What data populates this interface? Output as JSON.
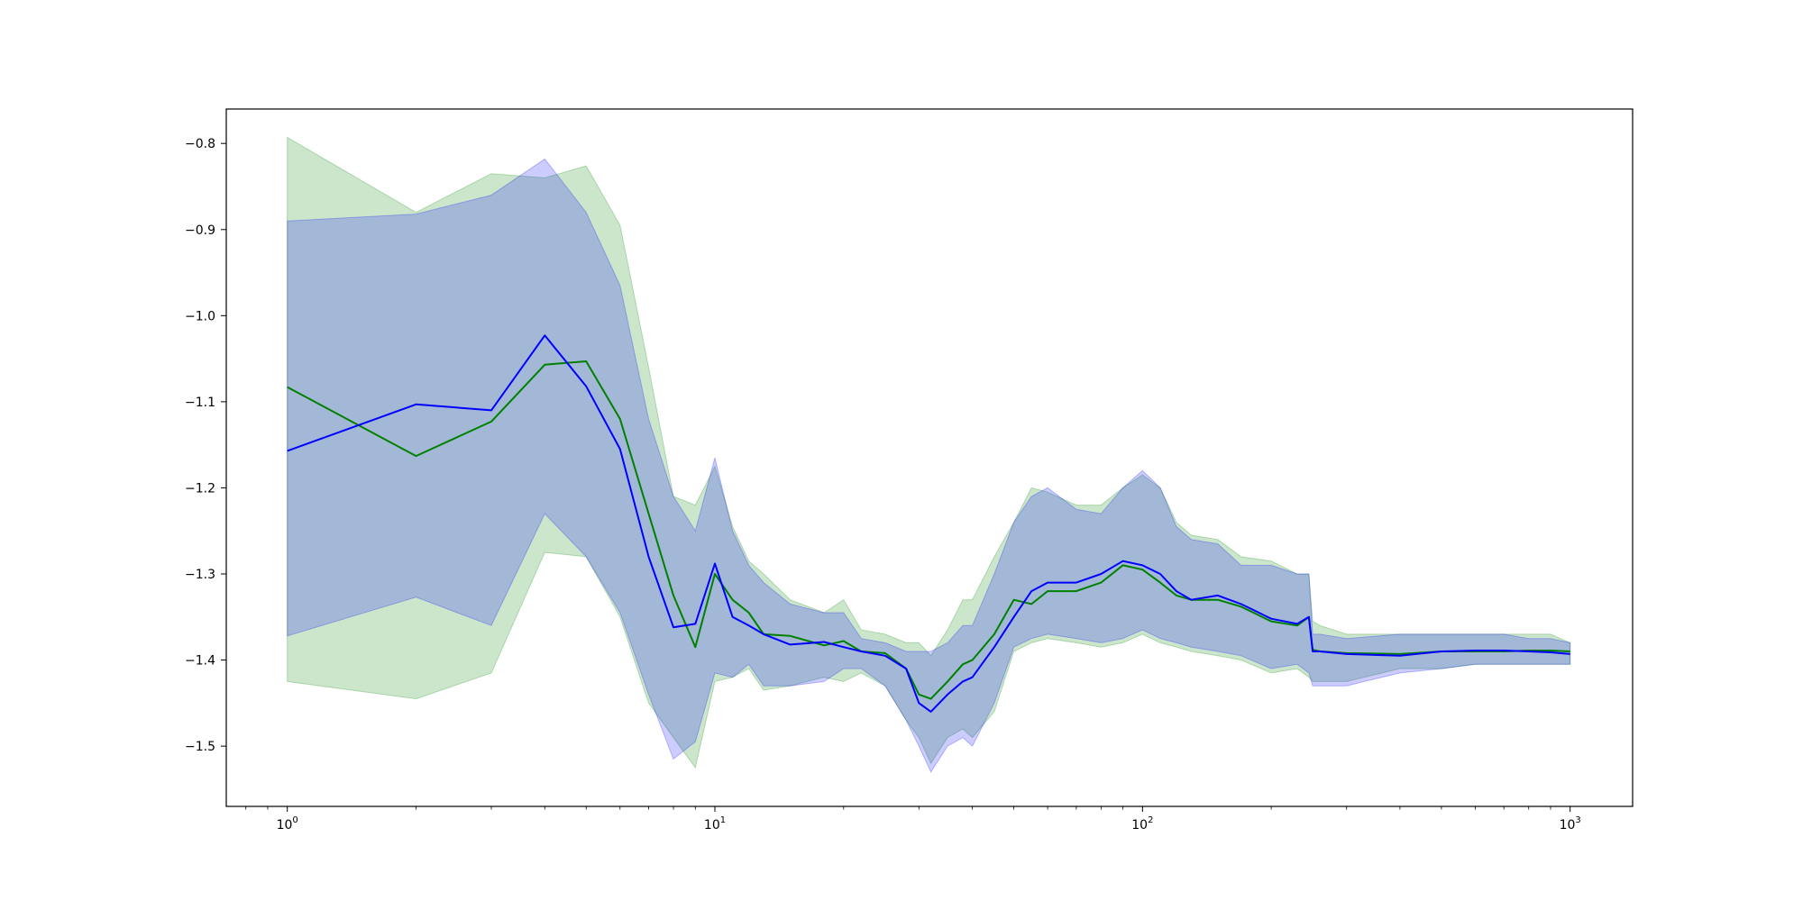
{
  "chart_data": {
    "type": "line",
    "title": "",
    "xlabel": "",
    "ylabel": "",
    "xscale": "log",
    "xlim": [
      0.72,
      1400
    ],
    "ylim": [
      -1.57,
      -0.76
    ],
    "grid": false,
    "legend": "none",
    "x_major_ticks": [
      {
        "value": 1,
        "base": "10",
        "exp": "0"
      },
      {
        "value": 10,
        "base": "10",
        "exp": "1"
      },
      {
        "value": 100,
        "base": "10",
        "exp": "2"
      },
      {
        "value": 1000,
        "base": "10",
        "exp": "3"
      }
    ],
    "y_ticks": [
      {
        "value": -0.8,
        "label": "−0.8"
      },
      {
        "value": -0.9,
        "label": "−0.9"
      },
      {
        "value": -1.0,
        "label": "−1.0"
      },
      {
        "value": -1.1,
        "label": "−1.1"
      },
      {
        "value": -1.2,
        "label": "−1.2"
      },
      {
        "value": -1.3,
        "label": "−1.3"
      },
      {
        "value": -1.4,
        "label": "−1.4"
      },
      {
        "value": -1.5,
        "label": "−1.5"
      }
    ],
    "series": [
      {
        "color": "#008000",
        "band_color": "#008000",
        "band_opacity": 0.2,
        "x": [
          1,
          2,
          3,
          4,
          5,
          6,
          7,
          8,
          9,
          10,
          11,
          12,
          13,
          15,
          18,
          20,
          22,
          25,
          28,
          30,
          32,
          35,
          38,
          40,
          45,
          50,
          55,
          60,
          70,
          80,
          90,
          100,
          110,
          120,
          130,
          150,
          170,
          200,
          230,
          245,
          250,
          260,
          300,
          400,
          500,
          600,
          700,
          800,
          900,
          1000
        ],
        "mean": [
          -1.083,
          -1.163,
          -1.123,
          -1.057,
          -1.053,
          -1.12,
          -1.23,
          -1.325,
          -1.385,
          -1.3,
          -1.33,
          -1.345,
          -1.37,
          -1.372,
          -1.383,
          -1.378,
          -1.39,
          -1.392,
          -1.41,
          -1.44,
          -1.445,
          -1.425,
          -1.405,
          -1.4,
          -1.37,
          -1.33,
          -1.335,
          -1.32,
          -1.32,
          -1.31,
          -1.29,
          -1.295,
          -1.31,
          -1.325,
          -1.33,
          -1.33,
          -1.338,
          -1.355,
          -1.36,
          -1.35,
          -1.388,
          -1.39,
          -1.392,
          -1.393,
          -1.39,
          -1.39,
          -1.39,
          -1.389,
          -1.389,
          -1.39
        ],
        "lower": [
          -1.425,
          -1.445,
          -1.415,
          -1.275,
          -1.28,
          -1.35,
          -1.45,
          -1.49,
          -1.525,
          -1.425,
          -1.42,
          -1.41,
          -1.435,
          -1.43,
          -1.42,
          -1.425,
          -1.415,
          -1.43,
          -1.47,
          -1.49,
          -1.52,
          -1.49,
          -1.48,
          -1.49,
          -1.46,
          -1.39,
          -1.38,
          -1.375,
          -1.38,
          -1.385,
          -1.38,
          -1.37,
          -1.38,
          -1.385,
          -1.39,
          -1.395,
          -1.4,
          -1.415,
          -1.41,
          -1.42,
          -1.425,
          -1.425,
          -1.425,
          -1.41,
          -1.41,
          -1.405,
          -1.405,
          -1.405,
          -1.405,
          -1.405
        ],
        "upper": [
          -0.793,
          -0.88,
          -0.835,
          -0.84,
          -0.826,
          -0.895,
          -1.06,
          -1.21,
          -1.22,
          -1.175,
          -1.245,
          -1.285,
          -1.3,
          -1.33,
          -1.345,
          -1.33,
          -1.365,
          -1.37,
          -1.38,
          -1.38,
          -1.395,
          -1.365,
          -1.33,
          -1.33,
          -1.28,
          -1.24,
          -1.2,
          -1.205,
          -1.22,
          -1.22,
          -1.2,
          -1.185,
          -1.2,
          -1.24,
          -1.255,
          -1.26,
          -1.28,
          -1.285,
          -1.3,
          -1.3,
          -1.355,
          -1.36,
          -1.37,
          -1.37,
          -1.37,
          -1.37,
          -1.37,
          -1.37,
          -1.37,
          -1.38
        ]
      },
      {
        "color": "#0000ff",
        "band_color": "#0000ff",
        "band_opacity": 0.2,
        "x": [
          1,
          2,
          3,
          4,
          5,
          6,
          7,
          8,
          9,
          10,
          11,
          12,
          13,
          15,
          18,
          20,
          22,
          25,
          28,
          30,
          32,
          35,
          38,
          40,
          45,
          50,
          55,
          60,
          70,
          80,
          90,
          100,
          110,
          120,
          130,
          150,
          170,
          200,
          230,
          245,
          250,
          260,
          300,
          400,
          500,
          600,
          700,
          800,
          900,
          1000
        ],
        "mean": [
          -1.157,
          -1.103,
          -1.11,
          -1.023,
          -1.082,
          -1.155,
          -1.28,
          -1.362,
          -1.358,
          -1.288,
          -1.35,
          -1.36,
          -1.37,
          -1.382,
          -1.379,
          -1.385,
          -1.39,
          -1.395,
          -1.41,
          -1.45,
          -1.46,
          -1.44,
          -1.425,
          -1.42,
          -1.385,
          -1.35,
          -1.32,
          -1.31,
          -1.31,
          -1.3,
          -1.285,
          -1.29,
          -1.3,
          -1.32,
          -1.33,
          -1.325,
          -1.335,
          -1.352,
          -1.358,
          -1.35,
          -1.39,
          -1.39,
          -1.393,
          -1.395,
          -1.39,
          -1.389,
          -1.389,
          -1.39,
          -1.391,
          -1.393
        ],
        "lower": [
          -1.372,
          -1.327,
          -1.36,
          -1.23,
          -1.28,
          -1.345,
          -1.44,
          -1.515,
          -1.495,
          -1.415,
          -1.42,
          -1.405,
          -1.43,
          -1.43,
          -1.425,
          -1.41,
          -1.41,
          -1.43,
          -1.47,
          -1.5,
          -1.53,
          -1.5,
          -1.49,
          -1.5,
          -1.45,
          -1.385,
          -1.375,
          -1.37,
          -1.375,
          -1.38,
          -1.375,
          -1.365,
          -1.375,
          -1.38,
          -1.385,
          -1.39,
          -1.395,
          -1.41,
          -1.405,
          -1.415,
          -1.43,
          -1.43,
          -1.43,
          -1.415,
          -1.41,
          -1.405,
          -1.405,
          -1.405,
          -1.405,
          -1.405
        ],
        "upper": [
          -0.89,
          -0.882,
          -0.86,
          -0.818,
          -0.88,
          -0.965,
          -1.12,
          -1.21,
          -1.25,
          -1.165,
          -1.25,
          -1.29,
          -1.31,
          -1.335,
          -1.345,
          -1.345,
          -1.375,
          -1.38,
          -1.39,
          -1.39,
          -1.39,
          -1.38,
          -1.36,
          -1.36,
          -1.3,
          -1.24,
          -1.21,
          -1.2,
          -1.225,
          -1.23,
          -1.2,
          -1.18,
          -1.2,
          -1.245,
          -1.26,
          -1.265,
          -1.29,
          -1.29,
          -1.3,
          -1.3,
          -1.37,
          -1.37,
          -1.375,
          -1.37,
          -1.37,
          -1.37,
          -1.37,
          -1.375,
          -1.375,
          -1.38
        ]
      }
    ]
  }
}
